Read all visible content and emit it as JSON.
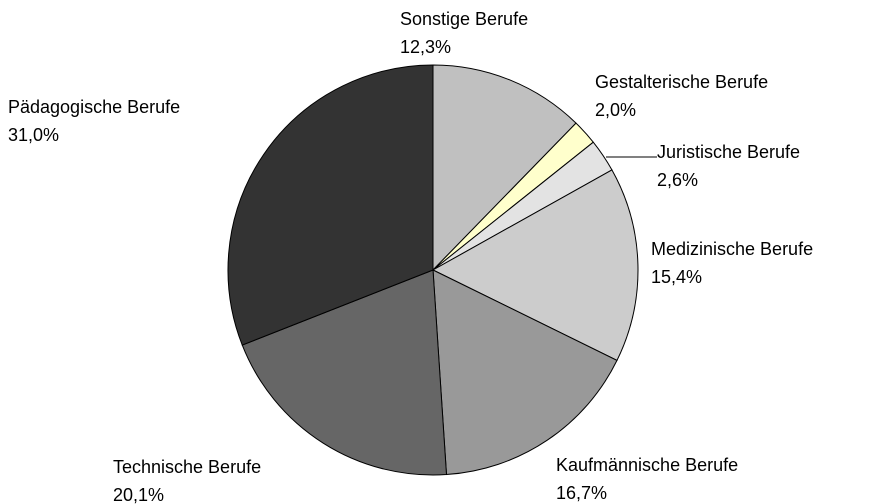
{
  "chart_data": {
    "type": "pie",
    "categories": [
      "Sonstige Berufe",
      "Gestalterische Berufe",
      "Juristische Berufe",
      "Medizinische Berufe",
      "Kaufmännische Berufe",
      "Technische Berufe",
      "Pädagogische Berufe"
    ],
    "values": [
      12.3,
      2.0,
      2.6,
      15.4,
      16.7,
      20.1,
      31.0
    ],
    "value_labels": [
      "12,3%",
      "2,0%",
      "2,6%",
      "15,4%",
      "16,7%",
      "20,1%",
      "31,0%"
    ],
    "colors": [
      "#c0c0c0",
      "#ffffcc",
      "#e3e3e3",
      "#cccccc",
      "#999999",
      "#666666",
      "#333333"
    ]
  }
}
